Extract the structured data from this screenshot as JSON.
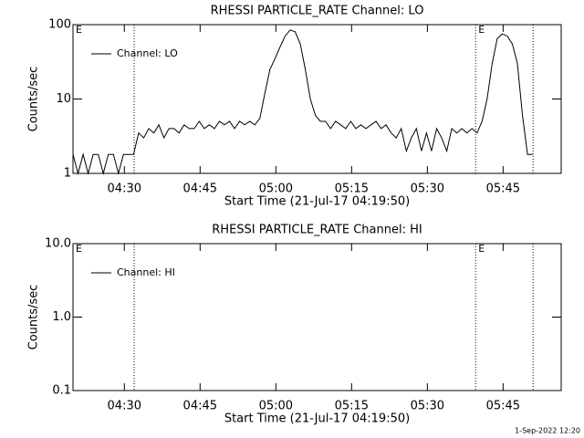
{
  "chart_data": [
    {
      "type": "line",
      "title": "RHESSI PARTICLE_RATE Channel: LO",
      "xlabel": "Start Time (21-Jul-17 04:19:50)",
      "ylabel": "Counts/sec",
      "log_y": true,
      "legend": "top-left",
      "xlim": [
        0,
        5800
      ],
      "xticks": [
        {
          "value": 610,
          "label": "04:30"
        },
        {
          "value": 1510,
          "label": "04:45"
        },
        {
          "value": 2410,
          "label": "05:00"
        },
        {
          "value": 3310,
          "label": "05:15"
        },
        {
          "value": 4210,
          "label": "05:30"
        },
        {
          "value": 5110,
          "label": "05:45"
        }
      ],
      "ylim": [
        1,
        100
      ],
      "yticks": [
        1,
        10,
        100
      ],
      "vlines": [
        727,
        4783,
        5466
      ],
      "annotations": [
        {
          "text": "E",
          "x": 0
        },
        {
          "text": "E",
          "x": 4783
        }
      ],
      "x": [
        0,
        60,
        120,
        180,
        240,
        300,
        360,
        420,
        480,
        540,
        600,
        660,
        720,
        780,
        840,
        900,
        960,
        1020,
        1080,
        1140,
        1200,
        1260,
        1320,
        1380,
        1440,
        1500,
        1560,
        1620,
        1680,
        1740,
        1800,
        1860,
        1920,
        1980,
        2040,
        2100,
        2160,
        2220,
        2280,
        2340,
        2400,
        2460,
        2520,
        2580,
        2640,
        2700,
        2760,
        2820,
        2880,
        2940,
        3000,
        3060,
        3120,
        3180,
        3240,
        3300,
        3360,
        3420,
        3480,
        3540,
        3600,
        3660,
        3720,
        3780,
        3840,
        3900,
        3960,
        4020,
        4080,
        4140,
        4200,
        4260,
        4320,
        4380,
        4440,
        4500,
        4560,
        4620,
        4680,
        4740,
        4800,
        4860,
        4920,
        4980,
        5040,
        5100,
        5160,
        5220,
        5280,
        5340,
        5400,
        5460
      ],
      "series": [
        {
          "name": "Channel: LO",
          "color": "#000000",
          "values": [
            1.8,
            1,
            1.8,
            1,
            1.8,
            1.8,
            1,
            1.8,
            1.8,
            1,
            1.8,
            1.8,
            1.8,
            3.5,
            3,
            4,
            3.5,
            4.5,
            3,
            4,
            4,
            3.5,
            4.5,
            4,
            4,
            5,
            4,
            4.5,
            4,
            5,
            4.5,
            5,
            4,
            5,
            4.5,
            5,
            4.5,
            5.5,
            12,
            25,
            35,
            50,
            70,
            85,
            80,
            55,
            25,
            10,
            6,
            5,
            5,
            4,
            5,
            4.5,
            4,
            5,
            4,
            4.5,
            4,
            4.5,
            5,
            4,
            4.5,
            3.5,
            3,
            4,
            2,
            3,
            4,
            2,
            3.5,
            2,
            4,
            3,
            2,
            4,
            3.5,
            4,
            3.5,
            4,
            3.5,
            5,
            10,
            30,
            65,
            75,
            70,
            55,
            30,
            6,
            1.8,
            1.8
          ]
        }
      ]
    },
    {
      "type": "line",
      "title": "RHESSI PARTICLE_RATE Channel: HI",
      "xlabel": "Start Time (21-Jul-17 04:19:50)",
      "ylabel": "Counts/sec",
      "log_y": true,
      "legend": "top-left",
      "xlim": [
        0,
        5800
      ],
      "xticks": [
        {
          "value": 610,
          "label": "04:30"
        },
        {
          "value": 1510,
          "label": "04:45"
        },
        {
          "value": 2410,
          "label": "05:00"
        },
        {
          "value": 3310,
          "label": "05:15"
        },
        {
          "value": 4210,
          "label": "05:30"
        },
        {
          "value": 5110,
          "label": "05:45"
        }
      ],
      "ylim": [
        0.1,
        10
      ],
      "yticks": [
        {
          "value": 0.1,
          "label": "0.1"
        },
        {
          "value": 1,
          "label": "1.0"
        },
        {
          "value": 10,
          "label": "10.0"
        }
      ],
      "vlines": [
        727,
        4783,
        5466
      ],
      "annotations": [
        {
          "text": "E",
          "x": 0
        },
        {
          "text": "E",
          "x": 4783
        }
      ],
      "x": [],
      "series": [
        {
          "name": "Channel: HI",
          "color": "#000000",
          "values": []
        }
      ]
    }
  ],
  "footer": "1-Sep-2022 12:20"
}
